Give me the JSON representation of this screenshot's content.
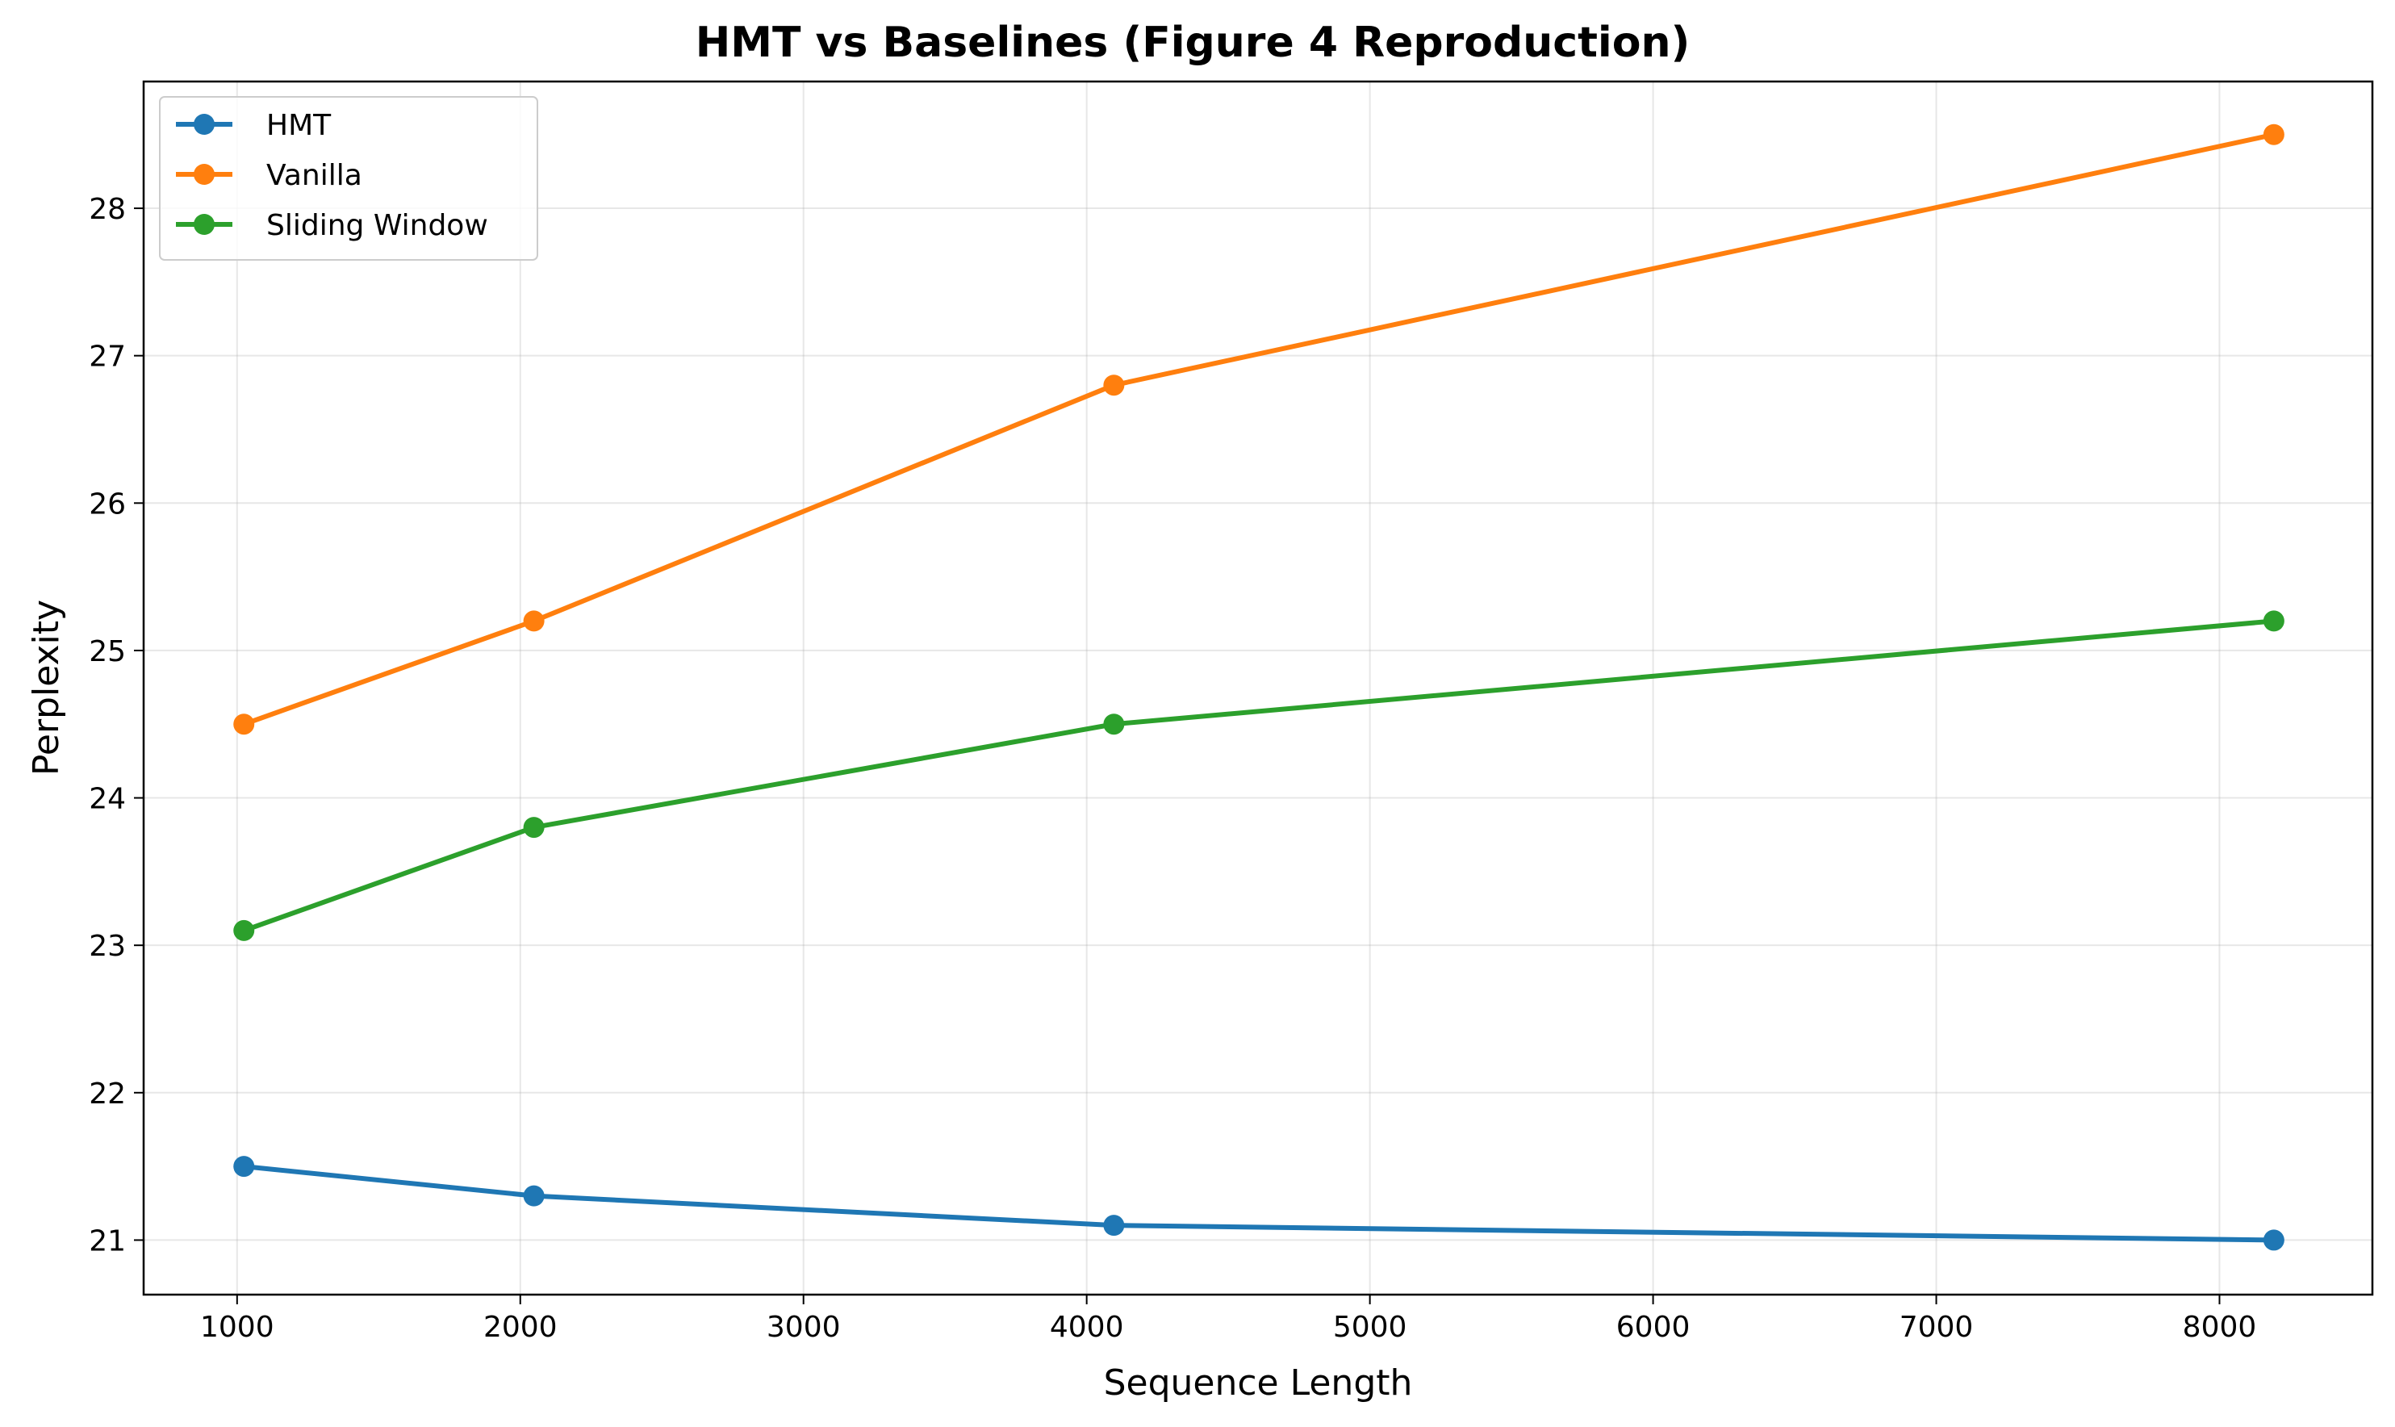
{
  "chart_data": {
    "type": "line",
    "title": "HMT vs Baselines (Figure 4 Reproduction)",
    "xlabel": "Sequence Length",
    "ylabel": "Perplexity",
    "x": [
      1024,
      2048,
      4096,
      8192
    ],
    "xlim": [
      670,
      8540
    ],
    "ylim": [
      20.63,
      28.86
    ],
    "xticks": [
      1000,
      2000,
      3000,
      4000,
      5000,
      6000,
      7000,
      8000
    ],
    "yticks": [
      21,
      22,
      23,
      24,
      25,
      26,
      27,
      28
    ],
    "grid": true,
    "legend_position": "top-left",
    "series": [
      {
        "name": "HMT",
        "color": "#1f77b4",
        "marker": "circle",
        "values": [
          21.5,
          21.3,
          21.1,
          21.0
        ]
      },
      {
        "name": "Vanilla",
        "color": "#ff7f0e",
        "marker": "circle",
        "values": [
          24.5,
          25.2,
          26.8,
          28.5
        ]
      },
      {
        "name": "Sliding Window",
        "color": "#2ca02c",
        "marker": "circle",
        "values": [
          23.1,
          23.8,
          24.5,
          25.2
        ]
      }
    ]
  }
}
